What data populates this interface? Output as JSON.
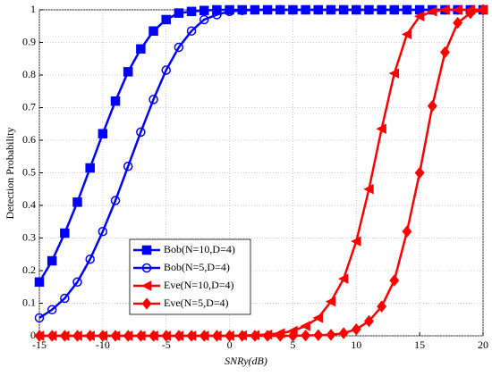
{
  "chart_data": {
    "type": "line",
    "x_label": "SNRy(dB)",
    "y_label": "Detection Probability",
    "x": [
      -15,
      -14,
      -13,
      -12,
      -11,
      -10,
      -9,
      -8,
      -7,
      -6,
      -5,
      -4,
      -3,
      -2,
      -1,
      0,
      1,
      2,
      3,
      4,
      5,
      6,
      7,
      8,
      9,
      10,
      11,
      12,
      13,
      14,
      15,
      16,
      17,
      18,
      19,
      20
    ],
    "series": [
      {
        "name": "Bob(N=10,D=4)",
        "color": "#0000ff",
        "marker": "square",
        "values": [
          0.165,
          0.23,
          0.315,
          0.41,
          0.515,
          0.62,
          0.72,
          0.81,
          0.88,
          0.935,
          0.97,
          0.99,
          0.995,
          0.998,
          1,
          1,
          1,
          1,
          1,
          1,
          1,
          1,
          1,
          1,
          1,
          1,
          1,
          1,
          1,
          1,
          1,
          1,
          1,
          1,
          1,
          1
        ]
      },
      {
        "name": "Bob(N=5,D=4)",
        "color": "#0000ff",
        "marker": "circle",
        "values": [
          0.055,
          0.08,
          0.115,
          0.165,
          0.235,
          0.32,
          0.415,
          0.52,
          0.625,
          0.725,
          0.815,
          0.885,
          0.935,
          0.97,
          0.985,
          0.995,
          0.998,
          1,
          1,
          1,
          1,
          1,
          1,
          1,
          1,
          1,
          1,
          1,
          1,
          1,
          1,
          1,
          1,
          1,
          1,
          1
        ]
      },
      {
        "name": "Eve(N=10,D=4)",
        "color": "#ff0000",
        "marker": "triangle-left",
        "values": [
          0,
          0,
          0,
          0,
          0,
          0,
          0,
          0,
          0,
          0,
          0,
          0,
          0,
          0,
          0,
          0,
          0.001,
          0.002,
          0.004,
          0.008,
          0.015,
          0.03,
          0.055,
          0.105,
          0.175,
          0.29,
          0.45,
          0.635,
          0.805,
          0.925,
          0.98,
          0.995,
          1,
          1,
          1,
          1
        ]
      },
      {
        "name": "Eve(N=5,D=4)",
        "color": "#ff0000",
        "marker": "diamond",
        "values": [
          0,
          0,
          0,
          0,
          0,
          0,
          0,
          0,
          0,
          0,
          0,
          0,
          0,
          0,
          0,
          0,
          0,
          0,
          0,
          0,
          0,
          0.001,
          0.002,
          0.003,
          0.008,
          0.02,
          0.045,
          0.09,
          0.17,
          0.32,
          0.5,
          0.705,
          0.87,
          0.96,
          0.99,
          1
        ]
      }
    ],
    "xlim": [
      -15,
      20
    ],
    "ylim": [
      0,
      1
    ],
    "xticks": [
      -15,
      -10,
      -5,
      0,
      5,
      10,
      15,
      20
    ],
    "yticks": [
      0,
      0.1,
      0.2,
      0.3,
      0.4,
      0.5,
      0.6,
      0.7,
      0.8,
      0.9,
      1
    ],
    "grid": true
  }
}
